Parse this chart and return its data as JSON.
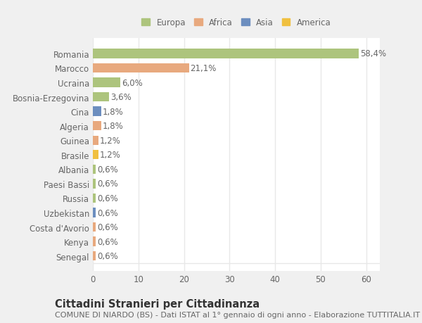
{
  "countries": [
    "Romania",
    "Marocco",
    "Ucraina",
    "Bosnia-Erzegovina",
    "Cina",
    "Algeria",
    "Guinea",
    "Brasile",
    "Albania",
    "Paesi Bassi",
    "Russia",
    "Uzbekistan",
    "Costa d'Avorio",
    "Kenya",
    "Senegal"
  ],
  "values": [
    58.4,
    21.1,
    6.0,
    3.6,
    1.8,
    1.8,
    1.2,
    1.2,
    0.6,
    0.6,
    0.6,
    0.6,
    0.6,
    0.6,
    0.6
  ],
  "labels": [
    "58,4%",
    "21,1%",
    "6,0%",
    "3,6%",
    "1,8%",
    "1,8%",
    "1,2%",
    "1,2%",
    "0,6%",
    "0,6%",
    "0,6%",
    "0,6%",
    "0,6%",
    "0,6%",
    "0,6%"
  ],
  "colors": [
    "#adc47d",
    "#e8a97e",
    "#adc47d",
    "#adc47d",
    "#6c8ebf",
    "#e8a97e",
    "#e8a97e",
    "#f0c040",
    "#adc47d",
    "#adc47d",
    "#adc47d",
    "#6c8ebf",
    "#e8a97e",
    "#e8a97e",
    "#e8a97e"
  ],
  "legend_labels": [
    "Europa",
    "Africa",
    "Asia",
    "America"
  ],
  "legend_colors": [
    "#adc47d",
    "#e8a97e",
    "#6c8ebf",
    "#f0c040"
  ],
  "title": "Cittadini Stranieri per Cittadinanza",
  "subtitle": "COMUNE DI NIARDO (BS) - Dati ISTAT al 1° gennaio di ogni anno - Elaborazione TUTTITALIA.IT",
  "xlim": [
    0,
    63
  ],
  "xticks": [
    0,
    10,
    20,
    30,
    40,
    50,
    60
  ],
  "figure_bg": "#f0f0f0",
  "plot_bg": "#ffffff",
  "grid_color": "#e8e8e8",
  "text_color": "#666666",
  "label_fontsize": 8.5,
  "tick_fontsize": 8.5,
  "title_fontsize": 10.5,
  "subtitle_fontsize": 8.0
}
